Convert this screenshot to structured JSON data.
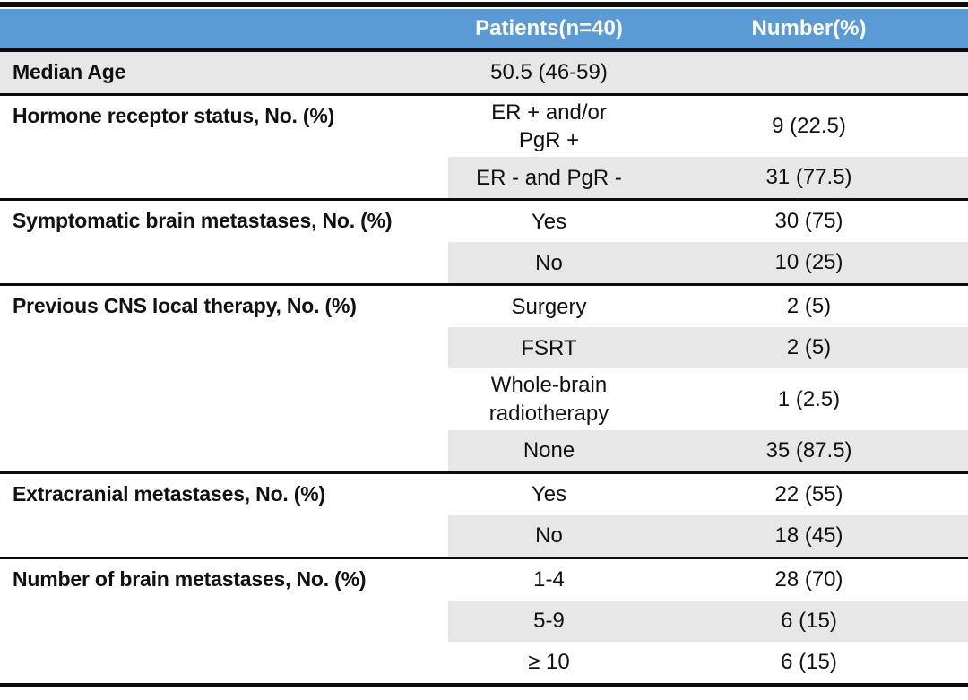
{
  "table": {
    "accent_color": "#5B9BD5",
    "shade_color": "#E8E7E7",
    "rule_color": "#0c0c0c",
    "header": {
      "col1_label": "",
      "col2_label": "Patients(n=40)",
      "col3_label": "Number(%)"
    },
    "sections": [
      {
        "label": "Median Age",
        "full_shade": true,
        "rows": [
          {
            "value": "50.5 (46-59)",
            "number": "",
            "shaded": false
          }
        ]
      },
      {
        "label": "Hormone receptor status, No. (%)",
        "full_shade": false,
        "rows": [
          {
            "value": "ER + and/or\nPgR +",
            "number": "9 (22.5)",
            "shaded": false
          },
          {
            "value": "ER - and PgR -",
            "number": "31 (77.5)",
            "shaded": true
          }
        ]
      },
      {
        "label": "Symptomatic brain metastases, No. (%)",
        "full_shade": false,
        "rows": [
          {
            "value": "Yes",
            "number": "30 (75)",
            "shaded": false
          },
          {
            "value": "No",
            "number": "10 (25)",
            "shaded": true
          }
        ]
      },
      {
        "label": "Previous CNS local therapy, No. (%)",
        "full_shade": false,
        "rows": [
          {
            "value": "Surgery",
            "number": "2 (5)",
            "shaded": false
          },
          {
            "value": "FSRT",
            "number": "2 (5)",
            "shaded": true
          },
          {
            "value": "Whole-brain\nradiotherapy",
            "number": "1 (2.5)",
            "shaded": false
          },
          {
            "value": "None",
            "number": "35 (87.5)",
            "shaded": true
          }
        ]
      },
      {
        "label": "Extracranial metastases, No. (%)",
        "full_shade": false,
        "rows": [
          {
            "value": "Yes",
            "number": "22 (55)",
            "shaded": false
          },
          {
            "value": "No",
            "number": "18 (45)",
            "shaded": true
          }
        ]
      },
      {
        "label": "Number of brain metastases, No. (%)",
        "full_shade": false,
        "rows": [
          {
            "value": "1-4",
            "number": "28 (70)",
            "shaded": false
          },
          {
            "value": "5-9",
            "number": "6 (15)",
            "shaded": true
          },
          {
            "value": "≥ 10",
            "number": "6 (15)",
            "shaded": false
          }
        ]
      }
    ]
  }
}
